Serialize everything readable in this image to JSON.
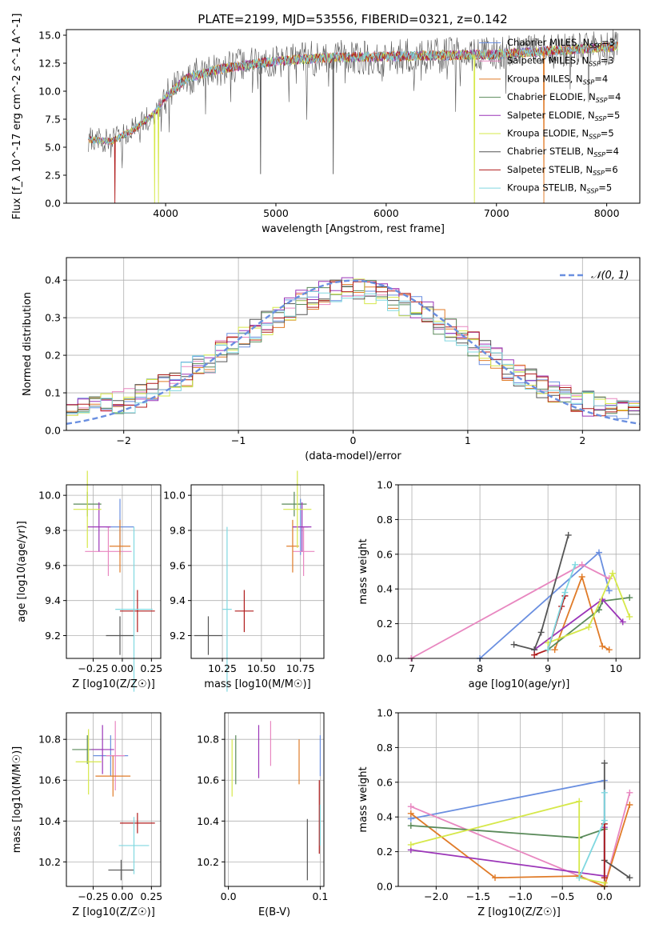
{
  "figure": {
    "title": "PLATE=2199, MJD=53556, FIBERID=0321, z=0.142"
  },
  "models": [
    {
      "name": "Chabrier MILES",
      "nssp": "3",
      "color": "#6a8fe0"
    },
    {
      "name": "Salpeter MILES",
      "nssp": "3",
      "color": "#e887c0"
    },
    {
      "name": "Kroupa MILES",
      "nssp": "4",
      "color": "#e07b28"
    },
    {
      "name": "Chabrier ELODIE",
      "nssp": "4",
      "color": "#5a8a5a"
    },
    {
      "name": "Salpeter ELODIE",
      "nssp": "5",
      "color": "#9b35b8"
    },
    {
      "name": "Kroupa ELODIE",
      "nssp": "5",
      "color": "#d6e84a"
    },
    {
      "name": "Chabrier STELIB",
      "nssp": "4",
      "color": "#555555"
    },
    {
      "name": "Salpeter STELIB",
      "nssp": "6",
      "color": "#b01c1c"
    },
    {
      "name": "Kroupa STELIB",
      "nssp": "5",
      "color": "#80d8e0"
    }
  ],
  "chart_data": [
    {
      "id": "spectrum",
      "type": "line",
      "xlabel": "wavelength [Angstrom, rest frame]",
      "ylabel": "Flux [f_λ 10^-17 erg cm^-2 s^-1 A^-1]",
      "xlim": [
        3100,
        8300
      ],
      "ylim": [
        0,
        15.5
      ],
      "xticks": [
        4000,
        5000,
        6000,
        7000,
        8000
      ],
      "yticks": [
        0.0,
        2.5,
        5.0,
        7.5,
        10.0,
        12.5,
        15.0
      ],
      "grid": false,
      "legend_position": "top-right",
      "continuum": {
        "x": [
          3300,
          3500,
          3700,
          3900,
          4000,
          4200,
          4500,
          5000,
          5500,
          6000,
          6500,
          7000,
          7500,
          8100
        ],
        "y": [
          5.7,
          5.5,
          6.5,
          8.0,
          9.5,
          11.2,
          12.0,
          12.7,
          13.0,
          13.1,
          13.2,
          13.3,
          13.6,
          14.0
        ]
      },
      "absorption_drops": [
        3540,
        3900,
        3935,
        4861,
        5520,
        6800,
        7430
      ]
    },
    {
      "id": "residuals",
      "type": "bar",
      "xlabel": "(data-model)/error",
      "ylabel": "Normed distribution",
      "xlim": [
        -2.5,
        2.5
      ],
      "ylim": [
        0,
        0.46
      ],
      "xticks": [
        -2,
        -1,
        0,
        1,
        2
      ],
      "xtick_labels": [
        "−2",
        "−1",
        "0",
        "1",
        "2"
      ],
      "yticks": [
        0.0,
        0.1,
        0.2,
        0.3,
        0.4
      ],
      "grid": true,
      "bin_width": 0.1,
      "legend_position": "top-right",
      "reference_curve": {
        "name": "𝒩(0, 1)",
        "color": "#6a8fe0",
        "mean": 0,
        "sigma": 1
      }
    },
    {
      "id": "age-vs-Z",
      "type": "scatter",
      "xlabel": "Z [log10(Z/Z☉)]",
      "ylabel": "age [log10(age/yr)]",
      "xlim": [
        -0.48,
        0.33
      ],
      "ylim": [
        9.07,
        10.06
      ],
      "xticks": [
        -0.25,
        0.0,
        0.25
      ],
      "xtick_labels": [
        "−0.25",
        "0.00",
        "0.25"
      ],
      "yticks": [
        9.2,
        9.4,
        9.6,
        9.8,
        10.0
      ],
      "grid": true,
      "points": [
        {
          "model": 0,
          "x": -0.02,
          "y": 9.82,
          "xerr": 0.12,
          "yerr": 0.16
        },
        {
          "model": 1,
          "x": -0.12,
          "y": 9.68,
          "xerr": 0.2,
          "yerr": 0.14
        },
        {
          "model": 2,
          "x": -0.02,
          "y": 9.71,
          "xerr": 0.09,
          "yerr": 0.15
        },
        {
          "model": 3,
          "x": -0.3,
          "y": 9.95,
          "xerr": 0.12,
          "yerr": 0.07
        },
        {
          "model": 4,
          "x": -0.2,
          "y": 9.82,
          "xerr": 0.1,
          "yerr": 0.14
        },
        {
          "model": 5,
          "x": -0.3,
          "y": 9.92,
          "xerr": 0.12,
          "yerr": 0.22
        },
        {
          "model": 6,
          "x": -0.02,
          "y": 9.2,
          "xerr": 0.12,
          "yerr": 0.11
        },
        {
          "model": 7,
          "x": 0.13,
          "y": 9.34,
          "xerr": 0.15,
          "yerr": 0.12
        },
        {
          "model": 8,
          "x": 0.1,
          "y": 9.35,
          "xerr": 0.16,
          "yerr": 0.47
        }
      ]
    },
    {
      "id": "age-vs-mass",
      "type": "scatter",
      "xlabel": "mass [log10(M/M☉)]",
      "ylabel": "",
      "xlim": [
        10.05,
        10.9
      ],
      "ylim": [
        9.07,
        10.06
      ],
      "xticks": [
        10.25,
        10.5,
        10.75
      ],
      "xtick_labels": [
        "10.25",
        "10.50",
        "10.75"
      ],
      "yticks": [
        9.2,
        9.4,
        9.6,
        9.8,
        10.0
      ],
      "grid": true,
      "points": [
        {
          "model": 0,
          "x": 10.75,
          "y": 9.82,
          "xerr": 0.05,
          "yerr": 0.16
        },
        {
          "model": 1,
          "x": 10.77,
          "y": 9.68,
          "xerr": 0.07,
          "yerr": 0.14
        },
        {
          "model": 2,
          "x": 10.7,
          "y": 9.71,
          "xerr": 0.04,
          "yerr": 0.15
        },
        {
          "model": 3,
          "x": 10.71,
          "y": 9.95,
          "xerr": 0.08,
          "yerr": 0.07
        },
        {
          "model": 4,
          "x": 10.76,
          "y": 9.82,
          "xerr": 0.06,
          "yerr": 0.14
        },
        {
          "model": 5,
          "x": 10.73,
          "y": 9.92,
          "xerr": 0.09,
          "yerr": 0.22
        },
        {
          "model": 6,
          "x": 10.16,
          "y": 9.2,
          "xerr": 0.09,
          "yerr": 0.11
        },
        {
          "model": 7,
          "x": 10.39,
          "y": 9.34,
          "xerr": 0.06,
          "yerr": 0.12
        },
        {
          "model": 8,
          "x": 10.28,
          "y": 9.35,
          "xerr": 0.03,
          "yerr": 0.47
        }
      ]
    },
    {
      "id": "weight-vs-age",
      "type": "line",
      "xlabel": "age  [log10(age/yr)]",
      "ylabel": "mass weight",
      "xlim": [
        6.8,
        10.35
      ],
      "ylim": [
        0,
        1.0
      ],
      "xticks": [
        7,
        8,
        9,
        10
      ],
      "yticks": [
        0.0,
        0.2,
        0.4,
        0.6,
        0.8,
        1.0
      ],
      "grid": true,
      "series": [
        {
          "model": 0,
          "x": [
            8.0,
            9.75,
            9.9
          ],
          "y": [
            0.0,
            0.61,
            0.39
          ]
        },
        {
          "model": 1,
          "x": [
            6.99,
            9.5,
            9.9
          ],
          "y": [
            0.0,
            0.54,
            0.46
          ]
        },
        {
          "model": 2,
          "x": [
            9.1,
            9.5,
            9.8,
            9.9
          ],
          "y": [
            0.05,
            0.47,
            0.07,
            0.05
          ]
        },
        {
          "model": 3,
          "x": [
            9.0,
            9.75,
            9.8,
            10.2
          ],
          "y": [
            0.05,
            0.28,
            0.33,
            0.35
          ]
        },
        {
          "model": 4,
          "x": [
            8.8,
            9.8,
            10.1
          ],
          "y": [
            0.05,
            0.34,
            0.21
          ]
        },
        {
          "model": 5,
          "x": [
            9.0,
            9.6,
            9.95,
            10.2
          ],
          "y": [
            0.09,
            0.18,
            0.49,
            0.24
          ]
        },
        {
          "model": 6,
          "x": [
            8.5,
            8.8,
            8.9,
            9.3
          ],
          "y": [
            0.08,
            0.05,
            0.15,
            0.71
          ]
        },
        {
          "model": 7,
          "x": [
            8.8,
            9.0,
            9.2,
            9.25
          ],
          "y": [
            0.02,
            0.05,
            0.3,
            0.36
          ]
        },
        {
          "model": 8,
          "x": [
            9.0,
            9.25,
            9.4
          ],
          "y": [
            0.05,
            0.38,
            0.54
          ]
        }
      ]
    },
    {
      "id": "mass-vs-Z",
      "type": "scatter",
      "xlabel": "Z [log10(Z/Z☉)]",
      "ylabel": "mass [log10(M/M☉)]",
      "xlim": [
        -0.48,
        0.33
      ],
      "ylim": [
        10.08,
        10.93
      ],
      "xticks": [
        -0.25,
        0.0,
        0.25
      ],
      "xtick_labels": [
        "−0.25",
        "0.00",
        "0.25"
      ],
      "yticks": [
        10.2,
        10.4,
        10.6,
        10.8
      ],
      "grid": true,
      "points": [
        {
          "model": 0,
          "x": -0.1,
          "y": 10.72,
          "xerr": 0.15,
          "yerr": 0.1
        },
        {
          "model": 1,
          "x": -0.06,
          "y": 10.72,
          "xerr": 0.08,
          "yerr": 0.17
        },
        {
          "model": 2,
          "x": -0.08,
          "y": 10.62,
          "xerr": 0.15,
          "yerr": 0.1
        },
        {
          "model": 3,
          "x": -0.3,
          "y": 10.75,
          "xerr": 0.13,
          "yerr": 0.07
        },
        {
          "model": 4,
          "x": -0.17,
          "y": 10.75,
          "xerr": 0.1,
          "yerr": 0.12
        },
        {
          "model": 5,
          "x": -0.29,
          "y": 10.69,
          "xerr": 0.11,
          "yerr": 0.16
        },
        {
          "model": 6,
          "x": -0.01,
          "y": 10.16,
          "xerr": 0.11,
          "yerr": 0.05
        },
        {
          "model": 7,
          "x": 0.13,
          "y": 10.39,
          "xerr": 0.15,
          "yerr": 0.05
        },
        {
          "model": 8,
          "x": 0.1,
          "y": 10.28,
          "xerr": 0.13,
          "yerr": 0.14
        }
      ]
    },
    {
      "id": "mass-vs-EBV",
      "type": "scatter",
      "xlabel": "E(B-V)",
      "ylabel": "",
      "xlim": [
        -0.004,
        0.104
      ],
      "ylim": [
        10.08,
        10.93
      ],
      "xticks": [
        0.0,
        0.1
      ],
      "xtick_labels": [
        "0.0",
        "0.1"
      ],
      "yticks": [
        10.2,
        10.4,
        10.6,
        10.8
      ],
      "grid": true,
      "points": [
        {
          "model": 0,
          "x": 0.1,
          "y": 10.72,
          "xerr": 0,
          "yerr": 0.1
        },
        {
          "model": 1,
          "x": 0.046,
          "y": 10.78,
          "xerr": 0,
          "yerr": 0.11
        },
        {
          "model": 2,
          "x": 0.077,
          "y": 10.69,
          "xerr": 0,
          "yerr": 0.11
        },
        {
          "model": 3,
          "x": 0.008,
          "y": 10.7,
          "xerr": 0,
          "yerr": 0.12
        },
        {
          "model": 4,
          "x": 0.033,
          "y": 10.74,
          "xerr": 0,
          "yerr": 0.13
        },
        {
          "model": 5,
          "x": 0.004,
          "y": 10.66,
          "xerr": 0,
          "yerr": 0.14
        },
        {
          "model": 6,
          "x": 0.086,
          "y": 10.26,
          "xerr": 0,
          "yerr": 0.15
        },
        {
          "model": 7,
          "x": 0.099,
          "y": 10.42,
          "xerr": 0,
          "yerr": 0.18
        },
        {
          "model": 8,
          "x": 0.1,
          "y": 10.38,
          "xerr": 0,
          "yerr": 0.1
        }
      ]
    },
    {
      "id": "weight-vs-Z",
      "type": "line",
      "xlabel": "Z [log10(Z/Z☉)]",
      "ylabel": "mass weight",
      "xlim": [
        -2.45,
        0.42
      ],
      "ylim": [
        0,
        1.0
      ],
      "xticks": [
        -2.0,
        -1.5,
        -1.0,
        -0.5,
        0.0
      ],
      "xtick_labels": [
        "−2.0",
        "−1.5",
        "−1.0",
        "−0.5",
        "0.0"
      ],
      "yticks": [
        0.0,
        0.2,
        0.4,
        0.6,
        0.8,
        1.0
      ],
      "grid": true,
      "series": [
        {
          "model": 0,
          "x": [
            -2.3,
            0.0,
            0.0
          ],
          "y": [
            0.39,
            0.61,
            0.0
          ]
        },
        {
          "model": 1,
          "x": [
            -2.3,
            -0.3,
            0.0,
            0.3
          ],
          "y": [
            0.46,
            0.06,
            0.0,
            0.54
          ]
        },
        {
          "model": 2,
          "x": [
            -2.3,
            -1.3,
            -0.3,
            0.0,
            0.3
          ],
          "y": [
            0.42,
            0.05,
            0.06,
            0.0,
            0.47
          ]
        },
        {
          "model": 3,
          "x": [
            -2.3,
            -0.3,
            0.0
          ],
          "y": [
            0.35,
            0.28,
            0.33
          ]
        },
        {
          "model": 4,
          "x": [
            -2.3,
            0.0,
            0.0
          ],
          "y": [
            0.21,
            0.06,
            0.34
          ]
        },
        {
          "model": 5,
          "x": [
            -2.3,
            -0.3,
            -0.3,
            0.0
          ],
          "y": [
            0.24,
            0.49,
            0.05,
            0.02
          ]
        },
        {
          "model": 6,
          "x": [
            0.0,
            0.0,
            0.3
          ],
          "y": [
            0.71,
            0.15,
            0.05
          ]
        },
        {
          "model": 7,
          "x": [
            0.0,
            0.0
          ],
          "y": [
            0.05,
            0.36
          ]
        },
        {
          "model": 8,
          "x": [
            -0.3,
            0.0,
            0.0
          ],
          "y": [
            0.05,
            0.38,
            0.54
          ]
        }
      ]
    }
  ]
}
